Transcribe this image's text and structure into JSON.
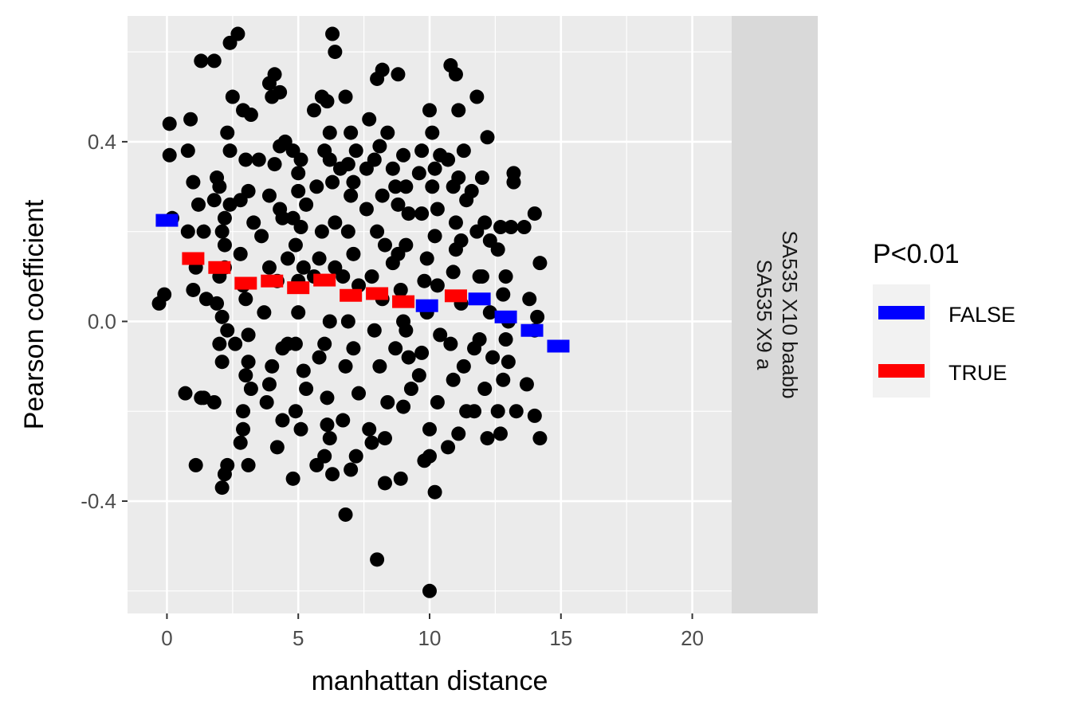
{
  "chart_data": {
    "type": "scatter",
    "xlabel": "manhattan distance",
    "ylabel": "Pearson coefficient",
    "xlim": [
      -1.5,
      21.5
    ],
    "ylim": [
      -0.65,
      0.68
    ],
    "x_ticks": [
      0,
      5,
      10,
      15,
      20
    ],
    "x_tick_labels": [
      "0",
      "5",
      "10",
      "15",
      "20"
    ],
    "y_ticks": [
      -0.4,
      0.0,
      0.4
    ],
    "y_tick_labels": [
      "-0.4",
      "0.0",
      "0.4"
    ],
    "grid": true,
    "facet_strip": {
      "line1": "SA535 X10 baabb",
      "line2": "SA535 X9 a"
    },
    "colors": {
      "panel": "#ebebeb",
      "grid": "#ffffff",
      "strip": "#d9d9d9",
      "points": "#000000",
      "legend_key_bg": "#f2f2f2"
    },
    "legend": {
      "title": "P<0.01",
      "placement": "right",
      "entries": [
        {
          "label": "FALSE",
          "color": "#0000ff"
        },
        {
          "label": "TRUE",
          "color": "#ff0000"
        }
      ]
    },
    "series": [
      {
        "name": "scatter",
        "points": [
          [
            -0.3,
            0.04
          ],
          [
            -0.1,
            0.06
          ],
          [
            0.1,
            0.44
          ],
          [
            0.1,
            0.37
          ],
          [
            0.2,
            0.23
          ],
          [
            0.7,
            -0.16
          ],
          [
            0.8,
            0.2
          ],
          [
            0.9,
            0.45
          ],
          [
            0.8,
            0.38
          ],
          [
            1.0,
            0.31
          ],
          [
            1.0,
            0.07
          ],
          [
            1.1,
            -0.32
          ],
          [
            1.1,
            0.12
          ],
          [
            1.3,
            0.58
          ],
          [
            1.3,
            -0.17
          ],
          [
            1.4,
            0.2
          ],
          [
            1.2,
            0.26
          ],
          [
            1.5,
            0.05
          ],
          [
            1.4,
            -0.17
          ],
          [
            1.8,
            0.58
          ],
          [
            1.8,
            0.27
          ],
          [
            1.9,
            0.32
          ],
          [
            1.8,
            -0.18
          ],
          [
            2.0,
            0.1
          ],
          [
            2.0,
            -0.05
          ],
          [
            1.9,
            0.04
          ],
          [
            2.0,
            0.3
          ],
          [
            2.1,
            -0.37
          ],
          [
            2.2,
            0.17
          ],
          [
            2.1,
            0.2
          ],
          [
            2.2,
            -0.34
          ],
          [
            2.2,
            0.23
          ],
          [
            2.3,
            -0.32
          ],
          [
            2.3,
            0.42
          ],
          [
            2.4,
            0.38
          ],
          [
            2.1,
            0.01
          ],
          [
            2.1,
            -0.09
          ],
          [
            2.2,
            0.12
          ],
          [
            2.4,
            0.26
          ],
          [
            2.3,
            -0.02
          ],
          [
            2.4,
            0.62
          ],
          [
            2.5,
            0.5
          ],
          [
            2.6,
            -0.05
          ],
          [
            2.8,
            0.27
          ],
          [
            2.8,
            0.15
          ],
          [
            2.9,
            0.47
          ],
          [
            2.9,
            0.08
          ],
          [
            3.0,
            -0.12
          ],
          [
            2.9,
            -0.2
          ],
          [
            3.1,
            0.29
          ],
          [
            3.1,
            -0.32
          ],
          [
            3.0,
            0.36
          ],
          [
            3.1,
            -0.03
          ],
          [
            3.2,
            0.46
          ],
          [
            3.3,
            0.22
          ],
          [
            3.0,
            0.05
          ],
          [
            3.2,
            -0.15
          ],
          [
            2.8,
            -0.27
          ],
          [
            2.7,
            0.64
          ],
          [
            2.9,
            -0.24
          ],
          [
            3.1,
            -0.09
          ],
          [
            3.5,
            0.36
          ],
          [
            3.6,
            0.19
          ],
          [
            3.7,
            0.02
          ],
          [
            3.8,
            -0.18
          ],
          [
            3.9,
            0.53
          ],
          [
            3.9,
            0.28
          ],
          [
            4.0,
            0.5
          ],
          [
            3.9,
            0.12
          ],
          [
            4.1,
            0.55
          ],
          [
            4.2,
            -0.28
          ],
          [
            4.3,
            0.39
          ],
          [
            4.2,
            0.09
          ],
          [
            4.0,
            -0.1
          ],
          [
            4.4,
            0.23
          ],
          [
            4.4,
            -0.22
          ],
          [
            4.5,
            0.4
          ],
          [
            4.6,
            0.14
          ],
          [
            4.6,
            -0.05
          ],
          [
            4.3,
            0.25
          ],
          [
            4.1,
            0.35
          ],
          [
            3.9,
            -0.14
          ],
          [
            4.3,
            0.51
          ],
          [
            4.4,
            -0.06
          ],
          [
            4.8,
            0.38
          ],
          [
            4.8,
            -0.35
          ],
          [
            4.9,
            0.17
          ],
          [
            4.9,
            -0.2
          ],
          [
            5.0,
            0.29
          ],
          [
            5.0,
            0.02
          ],
          [
            5.1,
            0.36
          ],
          [
            5.1,
            -0.24
          ],
          [
            5.2,
            0.12
          ],
          [
            5.2,
            -0.11
          ],
          [
            5.3,
            0.26
          ],
          [
            5.0,
            0.09
          ],
          [
            4.9,
            -0.05
          ],
          [
            5.1,
            0.21
          ],
          [
            5.3,
            -0.15
          ],
          [
            5.0,
            0.33
          ],
          [
            4.8,
            0.23
          ],
          [
            5.6,
            0.47
          ],
          [
            5.6,
            0.1
          ],
          [
            5.7,
            -0.32
          ],
          [
            5.7,
            0.3
          ],
          [
            5.8,
            -0.08
          ],
          [
            5.9,
            0.5
          ],
          [
            5.9,
            0.2
          ],
          [
            6.0,
            -0.3
          ],
          [
            6.1,
            0.49
          ],
          [
            6.0,
            0.38
          ],
          [
            6.2,
            0.42
          ],
          [
            6.2,
            0.0
          ],
          [
            6.1,
            -0.17
          ],
          [
            6.2,
            -0.26
          ],
          [
            6.3,
            0.31
          ],
          [
            6.3,
            -0.34
          ],
          [
            6.4,
            0.6
          ],
          [
            6.4,
            0.22
          ],
          [
            6.3,
            0.64
          ],
          [
            6.1,
            -0.23
          ],
          [
            5.8,
            0.14
          ],
          [
            6.0,
            -0.05
          ],
          [
            6.2,
            0.36
          ],
          [
            6.4,
            0.12
          ],
          [
            6.6,
            0.34
          ],
          [
            6.7,
            -0.22
          ],
          [
            6.7,
            0.1
          ],
          [
            6.8,
            -0.43
          ],
          [
            6.8,
            0.5
          ],
          [
            6.9,
            0.35
          ],
          [
            6.9,
            0.2
          ],
          [
            7.0,
            -0.33
          ],
          [
            7.0,
            0.28
          ],
          [
            7.1,
            -0.06
          ],
          [
            7.1,
            0.15
          ],
          [
            7.2,
            -0.3
          ],
          [
            7.2,
            0.38
          ],
          [
            7.3,
            0.08
          ],
          [
            7.3,
            -0.16
          ],
          [
            7.0,
            0.42
          ],
          [
            6.8,
            -0.1
          ],
          [
            7.1,
            0.31
          ],
          [
            6.9,
            0.0
          ],
          [
            7.6,
            0.25
          ],
          [
            7.7,
            0.45
          ],
          [
            7.7,
            -0.24
          ],
          [
            7.8,
            0.1
          ],
          [
            7.9,
            0.36
          ],
          [
            7.9,
            -0.02
          ],
          [
            8.0,
            0.54
          ],
          [
            8.0,
            -0.53
          ],
          [
            8.1,
            0.39
          ],
          [
            8.1,
            -0.1
          ],
          [
            8.2,
            0.56
          ],
          [
            8.2,
            0.28
          ],
          [
            8.3,
            -0.36
          ],
          [
            8.3,
            0.17
          ],
          [
            8.4,
            0.42
          ],
          [
            8.4,
            -0.18
          ],
          [
            7.8,
            -0.27
          ],
          [
            8.0,
            0.2
          ],
          [
            8.2,
            0.05
          ],
          [
            7.6,
            0.34
          ],
          [
            8.3,
            -0.26
          ],
          [
            8.6,
            0.34
          ],
          [
            8.6,
            0.13
          ],
          [
            8.7,
            -0.06
          ],
          [
            8.8,
            0.26
          ],
          [
            8.8,
            0.55
          ],
          [
            8.9,
            -0.35
          ],
          [
            8.9,
            0.07
          ],
          [
            9.0,
            0.37
          ],
          [
            9.0,
            -0.19
          ],
          [
            9.1,
            0.3
          ],
          [
            9.1,
            0.17
          ],
          [
            9.2,
            -0.08
          ],
          [
            9.2,
            0.24
          ],
          [
            9.3,
            -0.15
          ],
          [
            9.0,
            0.0
          ],
          [
            8.8,
            0.15
          ],
          [
            9.1,
            -0.02
          ],
          [
            8.7,
            0.3
          ],
          [
            9.6,
            0.33
          ],
          [
            9.6,
            -0.12
          ],
          [
            9.7,
            0.38
          ],
          [
            9.7,
            0.24
          ],
          [
            9.8,
            -0.31
          ],
          [
            9.9,
            0.14
          ],
          [
            9.9,
            0.02
          ],
          [
            10.0,
            0.47
          ],
          [
            10.0,
            -0.6
          ],
          [
            10.0,
            -0.24
          ],
          [
            10.1,
            0.42
          ],
          [
            10.1,
            0.3
          ],
          [
            10.2,
            -0.38
          ],
          [
            10.2,
            0.19
          ],
          [
            10.3,
            0.08
          ],
          [
            10.3,
            -0.18
          ],
          [
            10.4,
            0.37
          ],
          [
            10.4,
            -0.03
          ],
          [
            9.8,
            0.09
          ],
          [
            10.2,
            0.34
          ],
          [
            10.0,
            -0.3
          ],
          [
            10.3,
            0.25
          ],
          [
            9.7,
            -0.07
          ],
          [
            10.7,
            0.36
          ],
          [
            10.7,
            -0.28
          ],
          [
            10.8,
            0.57
          ],
          [
            10.9,
            0.11
          ],
          [
            10.9,
            -0.13
          ],
          [
            11.0,
            0.55
          ],
          [
            11.0,
            0.22
          ],
          [
            11.1,
            -0.25
          ],
          [
            11.1,
            0.32
          ],
          [
            11.2,
            0.04
          ],
          [
            11.3,
            0.38
          ],
          [
            11.3,
            -0.1
          ],
          [
            11.4,
            0.27
          ],
          [
            11.4,
            -0.2
          ],
          [
            11.0,
            0.16
          ],
          [
            10.8,
            -0.05
          ],
          [
            11.2,
            0.18
          ],
          [
            11.1,
            0.47
          ],
          [
            10.9,
            0.3
          ],
          [
            11.6,
            0.29
          ],
          [
            11.7,
            -0.2
          ],
          [
            11.8,
            0.5
          ],
          [
            11.8,
            0.2
          ],
          [
            11.9,
            -0.04
          ],
          [
            12.0,
            0.32
          ],
          [
            12.0,
            0.1
          ],
          [
            12.1,
            -0.15
          ],
          [
            12.2,
            0.41
          ],
          [
            12.2,
            -0.26
          ],
          [
            12.3,
            0.18
          ],
          [
            12.4,
            -0.08
          ],
          [
            12.1,
            0.22
          ],
          [
            11.9,
            0.1
          ],
          [
            12.3,
            0.02
          ],
          [
            11.7,
            -0.06
          ],
          [
            12.6,
            0.16
          ],
          [
            12.7,
            -0.25
          ],
          [
            12.7,
            0.21
          ],
          [
            12.8,
            0.06
          ],
          [
            12.8,
            -0.13
          ],
          [
            12.9,
            0.1
          ],
          [
            13.0,
            -0.09
          ],
          [
            13.1,
            0.21
          ],
          [
            13.2,
            0.33
          ],
          [
            13.2,
            0.31
          ],
          [
            13.3,
            -0.2
          ],
          [
            12.6,
            -0.2
          ],
          [
            13.0,
            0.0
          ],
          [
            12.9,
            -0.04
          ],
          [
            13.6,
            0.21
          ],
          [
            13.8,
            0.05
          ],
          [
            14.0,
            -0.21
          ],
          [
            14.0,
            0.24
          ],
          [
            14.1,
            0.01
          ],
          [
            14.2,
            0.13
          ],
          [
            14.2,
            -0.26
          ],
          [
            13.7,
            -0.14
          ],
          [
            14.0,
            -0.02
          ]
        ]
      },
      {
        "name": "FALSE",
        "points": [
          [
            0,
            0.225
          ],
          [
            9.9,
            0.035
          ],
          [
            11.9,
            0.05
          ],
          [
            12.9,
            0.01
          ],
          [
            13.9,
            -0.02
          ],
          [
            14.9,
            -0.055
          ]
        ]
      },
      {
        "name": "TRUE",
        "points": [
          [
            1,
            0.14
          ],
          [
            2,
            0.12
          ],
          [
            3,
            0.085
          ],
          [
            4,
            0.09
          ],
          [
            5,
            0.075
          ],
          [
            6,
            0.092
          ],
          [
            7,
            0.058
          ],
          [
            8,
            0.062
          ],
          [
            9,
            0.044
          ],
          [
            11,
            0.057
          ]
        ]
      }
    ]
  }
}
